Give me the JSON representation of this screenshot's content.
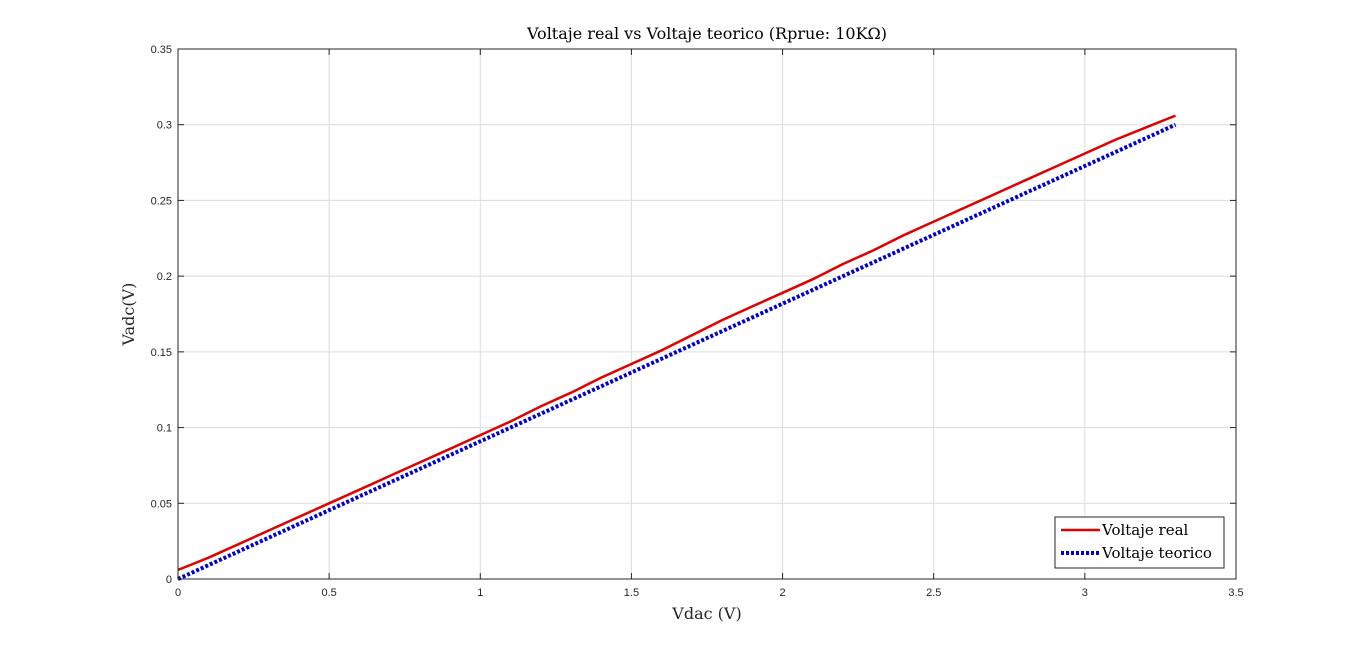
{
  "chart_data": {
    "type": "line",
    "title": "Voltaje real vs Voltaje teorico (Rprue: 10KΩ)",
    "xlabel": "Vdac (V)",
    "ylabel": "Vadc(V)",
    "xlim": [
      0,
      3.5
    ],
    "ylim": [
      0,
      0.35
    ],
    "xticks": [
      0,
      0.5,
      1,
      1.5,
      2,
      2.5,
      3,
      3.5
    ],
    "yticks": [
      0,
      0.05,
      0.1,
      0.15,
      0.2,
      0.25,
      0.3,
      0.35
    ],
    "xtick_labels": [
      "0",
      "0.5",
      "1",
      "1.5",
      "2",
      "2.5",
      "3",
      "3.5"
    ],
    "ytick_labels": [
      "0",
      "0.05",
      "0.1",
      "0.15",
      "0.2",
      "0.25",
      "0.3",
      "0.35"
    ],
    "grid": true,
    "legend_position": "bottom-right",
    "series": [
      {
        "name": "Voltaje real",
        "color": "#e00000",
        "style": "solid",
        "x": [
          0,
          0.05,
          0.1,
          0.2,
          0.3,
          0.4,
          0.5,
          0.6,
          0.7,
          0.8,
          0.9,
          1.0,
          1.1,
          1.2,
          1.3,
          1.4,
          1.5,
          1.6,
          1.7,
          1.8,
          1.9,
          2.0,
          2.1,
          2.2,
          2.3,
          2.4,
          2.5,
          2.6,
          2.7,
          2.8,
          2.9,
          3.0,
          3.1,
          3.2,
          3.3
        ],
        "y": [
          0.006,
          0.01,
          0.014,
          0.023,
          0.032,
          0.041,
          0.05,
          0.059,
          0.068,
          0.077,
          0.086,
          0.095,
          0.104,
          0.114,
          0.123,
          0.133,
          0.142,
          0.151,
          0.161,
          0.171,
          0.18,
          0.189,
          0.198,
          0.208,
          0.217,
          0.227,
          0.236,
          0.245,
          0.254,
          0.263,
          0.272,
          0.281,
          0.29,
          0.298,
          0.306
        ]
      },
      {
        "name": "Voltaje teorico",
        "color": "#0000cc",
        "style": "dotted",
        "x": [
          0,
          3.3
        ],
        "y": [
          0,
          0.3
        ]
      }
    ]
  }
}
